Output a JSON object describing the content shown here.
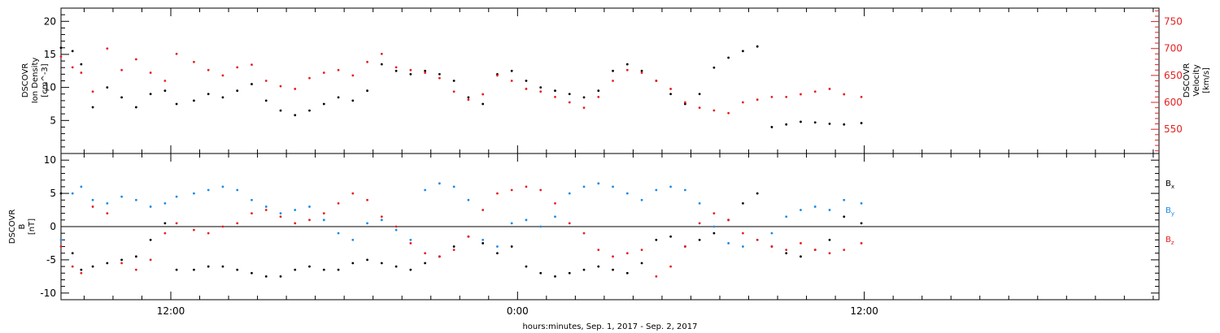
{
  "colors": {
    "axis": "#000000",
    "bx": "#000000",
    "by": "#1a8ae6",
    "bz": "#e52020",
    "density": "#000000",
    "velocity": "#e52020"
  },
  "xaxis": {
    "title": "hours:minutes, Sep.  1, 2017 - Sep.  2, 2017",
    "ticks": [
      {
        "hour": 12,
        "label": "12:00"
      },
      {
        "hour": 24,
        "label": "0:00"
      },
      {
        "hour": 36,
        "label": "12:00"
      }
    ],
    "xlim_hours": [
      8.2,
      46.2
    ]
  },
  "chart_data": [
    {
      "type": "scatter",
      "panel": "plasma",
      "ylabel_lines": [
        "DSCOVR",
        "Ion Density",
        "[cm^-3]"
      ],
      "ylim": [
        0,
        22
      ],
      "yticks": [
        5,
        10,
        15,
        20
      ],
      "y2label_lines": [
        "DSCOVR",
        "Velocity",
        "[km/s]"
      ],
      "y2lim": [
        505,
        775
      ],
      "y2ticks": [
        550,
        600,
        650,
        700,
        750
      ],
      "series": [
        {
          "name": "Ion Density",
          "axis": "left",
          "color": "#000000",
          "x": [
            8.2,
            8.6,
            8.9,
            9.3,
            9.8,
            10.3,
            10.8,
            11.3,
            11.8,
            12.2,
            12.8,
            13.3,
            13.8,
            14.3,
            14.8,
            15.3,
            15.8,
            16.3,
            16.8,
            17.3,
            17.8,
            18.3,
            18.8,
            19.3,
            19.8,
            20.3,
            20.8,
            21.3,
            21.8,
            22.3,
            22.8,
            23.3,
            23.8,
            24.3,
            24.8,
            25.3,
            25.8,
            26.3,
            26.8,
            27.3,
            27.8,
            28.3,
            28.8,
            29.3,
            29.8,
            30.3,
            30.8,
            31.3,
            31.8,
            32.3,
            32.8,
            33.3,
            33.8,
            34.3,
            34.8,
            35.3,
            35.9
          ],
          "y": [
            16.0,
            15.5,
            13.5,
            7.0,
            10.0,
            8.5,
            7.0,
            9.0,
            9.5,
            7.5,
            8.0,
            9.0,
            8.5,
            9.5,
            10.5,
            8.0,
            6.5,
            5.8,
            6.5,
            7.5,
            8.5,
            8.0,
            9.5,
            13.5,
            12.5,
            12.0,
            12.5,
            12.0,
            11.0,
            8.5,
            7.5,
            12.0,
            12.5,
            11.0,
            10.0,
            9.5,
            9.0,
            8.5,
            9.5,
            12.5,
            13.5,
            12.5,
            11.0,
            9.0,
            7.5,
            9.0,
            13.0,
            14.5,
            15.5,
            16.2,
            4.0,
            4.4,
            4.8,
            4.7,
            4.5,
            4.4,
            4.6
          ]
        },
        {
          "name": "Velocity",
          "axis": "right",
          "color": "#e52020",
          "x": [
            8.2,
            8.6,
            8.9,
            9.3,
            9.8,
            10.3,
            10.8,
            11.3,
            11.8,
            12.2,
            12.8,
            13.3,
            13.8,
            14.3,
            14.8,
            15.3,
            15.8,
            16.3,
            16.8,
            17.3,
            17.8,
            18.3,
            18.8,
            19.3,
            19.8,
            20.3,
            20.8,
            21.3,
            21.8,
            22.3,
            22.8,
            23.3,
            23.8,
            24.3,
            24.8,
            25.3,
            25.8,
            26.3,
            26.8,
            27.3,
            27.8,
            28.3,
            28.8,
            29.3,
            29.8,
            30.3,
            30.8,
            31.3,
            31.8,
            32.3,
            32.8,
            33.3,
            33.8,
            34.3,
            34.8,
            35.3,
            35.9
          ],
          "y": [
            685,
            665,
            655,
            620,
            700,
            660,
            680,
            655,
            640,
            690,
            675,
            660,
            650,
            665,
            670,
            640,
            630,
            625,
            645,
            655,
            660,
            650,
            675,
            690,
            665,
            660,
            655,
            645,
            620,
            605,
            615,
            650,
            640,
            625,
            620,
            610,
            600,
            590,
            610,
            640,
            660,
            655,
            640,
            625,
            600,
            590,
            585,
            580,
            600,
            605,
            610,
            610,
            615,
            620,
            625,
            615,
            610
          ]
        }
      ]
    },
    {
      "type": "scatter",
      "panel": "magnetic_field",
      "ylabel_lines": [
        "DSCOVR",
        "B",
        "[nT]"
      ],
      "ylim": [
        -11,
        11
      ],
      "yticks": [
        -10,
        -5,
        0,
        5,
        10
      ],
      "zero_line": true,
      "series": [
        {
          "name": "Bx",
          "color": "#000000",
          "x": [
            8.2,
            8.6,
            8.9,
            9.3,
            9.8,
            10.3,
            10.8,
            11.3,
            11.8,
            12.2,
            12.8,
            13.3,
            13.8,
            14.3,
            14.8,
            15.3,
            15.8,
            16.3,
            16.8,
            17.3,
            17.8,
            18.3,
            18.8,
            19.3,
            19.8,
            20.3,
            20.8,
            21.3,
            21.8,
            22.3,
            22.8,
            23.3,
            23.8,
            24.3,
            24.8,
            25.3,
            25.8,
            26.3,
            26.8,
            27.3,
            27.8,
            28.3,
            28.8,
            29.3,
            29.8,
            30.3,
            30.8,
            31.3,
            31.8,
            32.3,
            32.8,
            33.3,
            33.8,
            34.3,
            34.8,
            35.3,
            35.9
          ],
          "y": [
            5.0,
            -4.0,
            -6.5,
            -6.0,
            -5.5,
            -5.0,
            -4.5,
            -2.0,
            0.5,
            -6.5,
            -6.5,
            -6.0,
            -6.0,
            -6.5,
            -7.0,
            -7.5,
            -7.5,
            -6.5,
            -6.0,
            -6.5,
            -6.5,
            -5.5,
            -5.0,
            -5.5,
            -6.0,
            -6.5,
            -5.5,
            -4.5,
            -3.0,
            -1.5,
            -2.5,
            -4.0,
            -3.0,
            -6.0,
            -7.0,
            -7.5,
            -7.0,
            -6.5,
            -6.0,
            -6.5,
            -7.0,
            -5.5,
            -2.0,
            -1.5,
            -3.0,
            -2.0,
            -1.0,
            1.0,
            3.5,
            5.0,
            -3.0,
            -4.0,
            -4.5,
            -3.5,
            -2.0,
            1.5,
            0.5
          ]
        },
        {
          "name": "By",
          "color": "#1a8ae6",
          "x": [
            8.2,
            8.6,
            8.9,
            9.3,
            9.8,
            10.3,
            10.8,
            11.3,
            11.8,
            12.2,
            12.8,
            13.3,
            13.8,
            14.3,
            14.8,
            15.3,
            15.8,
            16.3,
            16.8,
            17.3,
            17.8,
            18.3,
            18.8,
            19.3,
            19.8,
            20.3,
            20.8,
            21.3,
            21.8,
            22.3,
            22.8,
            23.3,
            23.8,
            24.3,
            24.8,
            25.3,
            25.8,
            26.3,
            26.8,
            27.3,
            27.8,
            28.3,
            28.8,
            29.3,
            29.8,
            30.3,
            30.8,
            31.3,
            31.8,
            32.3,
            32.8,
            33.3,
            33.8,
            34.3,
            34.8,
            35.3,
            35.9
          ],
          "y": [
            -2.0,
            5.0,
            6.0,
            4.0,
            3.5,
            4.5,
            4.0,
            3.0,
            3.5,
            4.5,
            5.0,
            5.5,
            6.0,
            5.5,
            4.0,
            3.0,
            2.0,
            2.5,
            3.0,
            1.0,
            -1.0,
            -2.0,
            0.5,
            1.0,
            -0.5,
            -2.0,
            5.5,
            6.5,
            6.0,
            4.0,
            -2.0,
            -3.0,
            0.5,
            1.0,
            0.0,
            1.5,
            5.0,
            6.0,
            6.5,
            6.0,
            5.0,
            4.0,
            5.5,
            6.0,
            5.5,
            3.5,
            0.0,
            -2.5,
            -3.0,
            -2.0,
            -1.0,
            1.5,
            2.5,
            3.0,
            2.5,
            4.0,
            3.5
          ]
        },
        {
          "name": "Bz",
          "color": "#e52020",
          "x": [
            8.2,
            8.6,
            8.9,
            9.3,
            9.8,
            10.3,
            10.8,
            11.3,
            11.8,
            12.2,
            12.8,
            13.3,
            13.8,
            14.3,
            14.8,
            15.3,
            15.8,
            16.3,
            16.8,
            17.3,
            17.8,
            18.3,
            18.8,
            19.3,
            19.8,
            20.3,
            20.8,
            21.3,
            21.8,
            22.3,
            22.8,
            23.3,
            23.8,
            24.3,
            24.8,
            25.3,
            25.8,
            26.3,
            26.8,
            27.3,
            27.8,
            28.3,
            28.8,
            29.3,
            29.8,
            30.3,
            30.8,
            31.3,
            31.8,
            32.3,
            32.8,
            33.3,
            33.8,
            34.3,
            34.8,
            35.3,
            35.9
          ],
          "y": [
            -3.0,
            -6.0,
            -7.0,
            3.0,
            2.0,
            -5.5,
            -6.5,
            -5.0,
            -1.0,
            0.5,
            -0.5,
            -1.0,
            0.0,
            0.5,
            2.0,
            2.5,
            1.5,
            0.5,
            1.0,
            2.0,
            3.5,
            5.0,
            4.0,
            1.5,
            0.0,
            -2.5,
            -4.0,
            -4.5,
            -3.5,
            -1.5,
            2.5,
            5.0,
            5.5,
            6.0,
            5.5,
            3.5,
            0.5,
            -1.0,
            -3.5,
            -4.5,
            -4.0,
            -3.5,
            -7.5,
            -6.0,
            -3.0,
            0.5,
            2.0,
            1.0,
            -1.0,
            -2.0,
            -3.0,
            -3.5,
            -2.5,
            -3.5,
            -4.0,
            -3.5,
            -2.5
          ]
        }
      ],
      "legend": [
        {
          "name": "Bx",
          "base": "B",
          "sub": "x",
          "color": "#000000"
        },
        {
          "name": "By",
          "base": "B",
          "sub": "y",
          "color": "#1a8ae6"
        },
        {
          "name": "Bz",
          "base": "B",
          "sub": "z",
          "color": "#e52020"
        }
      ]
    }
  ]
}
